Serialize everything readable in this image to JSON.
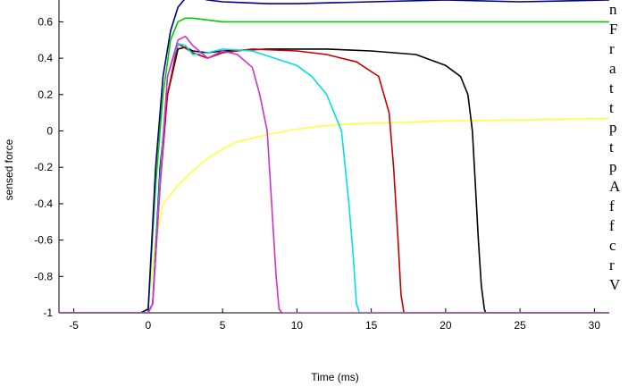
{
  "chart_data": {
    "type": "line",
    "xlabel": "Time (ms)",
    "ylabel": "sensed force",
    "xlim": [
      -6,
      31
    ],
    "ylim": [
      -1,
      0.72
    ],
    "xticks": [
      -5,
      0,
      5,
      10,
      15,
      20,
      25,
      30
    ],
    "yticks": [
      -1,
      -0.8,
      -0.6,
      -0.4,
      -0.2,
      0,
      0.2,
      0.4,
      0.6
    ],
    "series": [
      {
        "color": "#ffff40",
        "x": [
          -6,
          -0.5,
          0,
          0.5,
          1,
          2,
          3,
          4,
          5,
          6,
          8,
          10,
          12,
          14,
          16,
          18,
          20,
          25,
          31
        ],
        "y": [
          -1,
          -1,
          -0.97,
          -0.6,
          -0.4,
          -0.3,
          -0.22,
          -0.15,
          -0.1,
          -0.06,
          -0.02,
          0.01,
          0.03,
          0.04,
          0.045,
          0.05,
          0.055,
          0.06,
          0.07
        ]
      },
      {
        "color": "#00cc00",
        "x": [
          -6,
          -0.5,
          0,
          0.5,
          1,
          1.5,
          2,
          2.5,
          3,
          5,
          10,
          20,
          31
        ],
        "y": [
          -1,
          -1,
          -0.98,
          -0.3,
          0.2,
          0.5,
          0.6,
          0.62,
          0.62,
          0.6,
          0.6,
          0.6,
          0.6
        ]
      },
      {
        "color": "#000080",
        "x": [
          -6,
          -0.5,
          0,
          0.5,
          1,
          1.5,
          2,
          2.5,
          3,
          3.5,
          4,
          5,
          8,
          10,
          15,
          20,
          25,
          31
        ],
        "y": [
          -1,
          -1,
          -0.98,
          -0.2,
          0.3,
          0.55,
          0.68,
          0.73,
          0.74,
          0.73,
          0.72,
          0.71,
          0.7,
          0.7,
          0.71,
          0.72,
          0.71,
          0.72
        ]
      },
      {
        "color": "#000000",
        "x": [
          -6,
          0,
          0.3,
          0.8,
          1.3,
          2,
          2.5,
          3,
          4,
          5,
          8,
          12,
          15,
          18,
          20,
          21,
          21.5,
          21.8,
          22,
          22.2,
          22.4,
          22.6,
          22.7,
          31
        ],
        "y": [
          -1,
          -1,
          -0.95,
          -0.2,
          0.2,
          0.45,
          0.46,
          0.44,
          0.43,
          0.44,
          0.45,
          0.45,
          0.44,
          0.42,
          0.36,
          0.3,
          0.2,
          0.0,
          -0.3,
          -0.6,
          -0.85,
          -0.98,
          -1,
          -1
        ]
      },
      {
        "color": "#c00000",
        "x": [
          -6,
          0,
          0.3,
          0.8,
          1.3,
          2,
          3,
          4,
          5,
          7,
          10,
          12,
          14,
          15.5,
          16.2,
          16.5,
          16.8,
          17,
          17.2,
          31
        ],
        "y": [
          -1,
          -1,
          -0.95,
          -0.3,
          0.2,
          0.48,
          0.43,
          0.4,
          0.43,
          0.45,
          0.44,
          0.42,
          0.38,
          0.3,
          0.1,
          -0.2,
          -0.6,
          -0.9,
          -1,
          -1
        ]
      },
      {
        "color": "#00e0e0",
        "x": [
          -6,
          0,
          0.3,
          0.8,
          1.3,
          2,
          2.5,
          3,
          4,
          5,
          7,
          10,
          11,
          12,
          13,
          13.5,
          13.8,
          14,
          14.2,
          31
        ],
        "y": [
          -1,
          -1,
          -0.95,
          -0.25,
          0.3,
          0.48,
          0.47,
          0.42,
          0.43,
          0.45,
          0.44,
          0.36,
          0.3,
          0.2,
          0.0,
          -0.4,
          -0.7,
          -0.95,
          -1,
          -1
        ]
      },
      {
        "color": "#d030d0",
        "x": [
          -6,
          0,
          0.3,
          0.8,
          1.3,
          2,
          2.5,
          3,
          4,
          5,
          6,
          7,
          7.5,
          8,
          8.3,
          8.6,
          8.8,
          9,
          31
        ],
        "y": [
          -1,
          -1,
          -0.95,
          -0.3,
          0.3,
          0.5,
          0.52,
          0.47,
          0.4,
          0.44,
          0.42,
          0.35,
          0.2,
          0.0,
          -0.4,
          -0.8,
          -0.98,
          -1,
          -1
        ]
      }
    ]
  },
  "side_text": [
    "n",
    "F",
    "r",
    "a",
    "t",
    "t",
    "p",
    "t",
    "p",
    "A",
    "f",
    "f",
    "c",
    "r",
    "V"
  ]
}
